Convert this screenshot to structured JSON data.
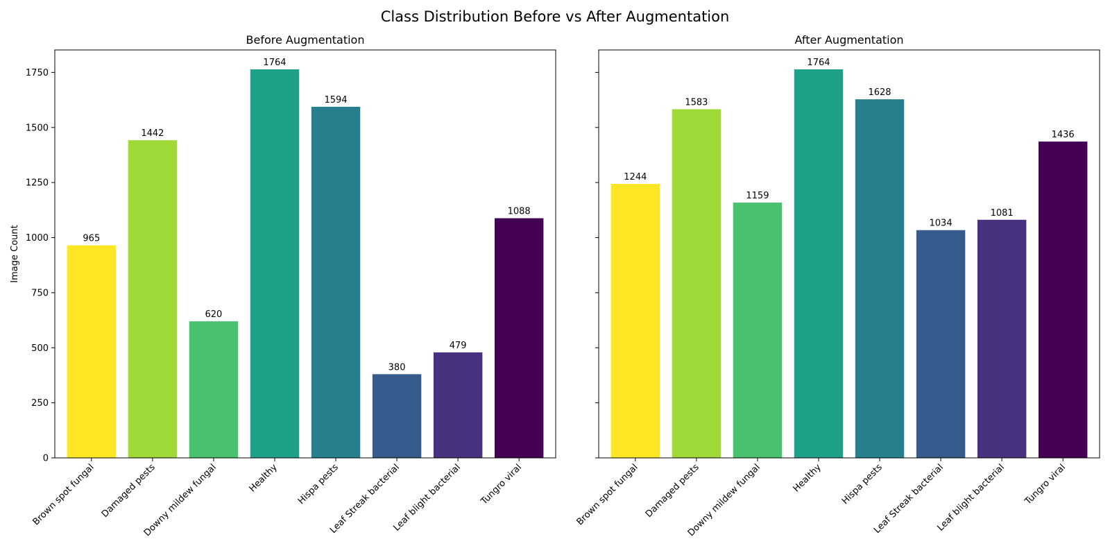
{
  "title": "Class Distribution Before vs After Augmentation",
  "chart_data": [
    {
      "type": "bar",
      "title": "Before Augmentation",
      "xlabel": "",
      "ylabel": "Image Count",
      "ylim": [
        0,
        1852
      ],
      "yticks": [
        0,
        250,
        500,
        750,
        1000,
        1250,
        1500,
        1750
      ],
      "categories": [
        "Brown spot fungal",
        "Damaged pests",
        "Downy mildew fungal",
        "Healthy",
        "Hispa pests",
        "Leaf Streak bacterial",
        "Leaf blight bacterial",
        "Tungro viral"
      ],
      "values": [
        965,
        1442,
        620,
        1764,
        1594,
        380,
        479,
        1088
      ],
      "colors": [
        "#fde725",
        "#a0da39",
        "#4ac16d",
        "#1fa187",
        "#277f8e",
        "#365c8d",
        "#46327e",
        "#440154"
      ]
    },
    {
      "type": "bar",
      "title": "After Augmentation",
      "xlabel": "",
      "ylabel": "",
      "ylim": [
        0,
        1852
      ],
      "yticks": [
        0,
        250,
        500,
        750,
        1000,
        1250,
        1500,
        1750
      ],
      "categories": [
        "Brown spot fungal",
        "Damaged pests",
        "Downy mildew fungal",
        "Healthy",
        "Hispa pests",
        "Leaf Streak bacterial",
        "Leaf blight bacterial",
        "Tungro viral"
      ],
      "values": [
        1244,
        1583,
        1159,
        1764,
        1628,
        1034,
        1081,
        1436
      ],
      "colors": [
        "#fde725",
        "#a0da39",
        "#4ac16d",
        "#1fa187",
        "#277f8e",
        "#365c8d",
        "#46327e",
        "#440154"
      ]
    }
  ]
}
